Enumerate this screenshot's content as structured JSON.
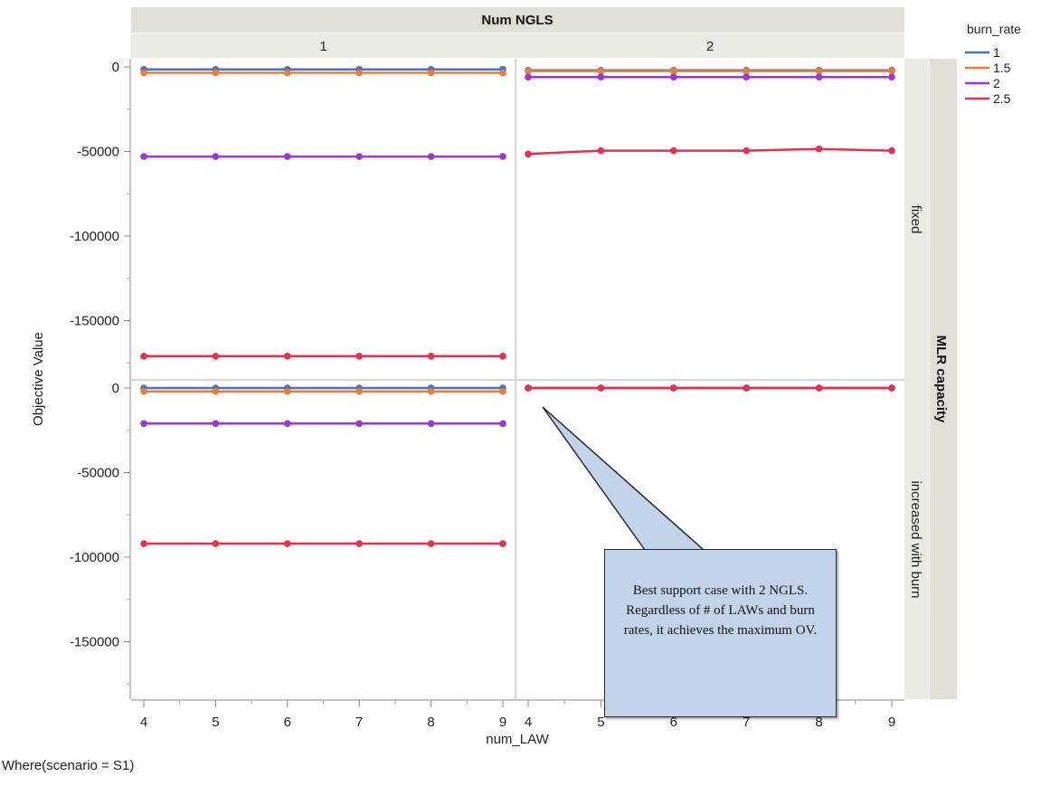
{
  "chart_data": {
    "type": "line",
    "facet_column_title": "Num NGLS",
    "facet_columns": [
      "1",
      "2"
    ],
    "facet_row_title": "MLR capacity",
    "facet_rows": [
      "fixed",
      "increased with burn"
    ],
    "xlabel": "num_LAW",
    "ylabel": "Objective Value",
    "x_ticks": [
      4,
      5,
      6,
      7,
      8,
      9
    ],
    "y_ticks": [
      0,
      -50000,
      -100000,
      -150000
    ],
    "y_tick_labels": [
      "0",
      "-50000",
      "-100000",
      "-150000"
    ],
    "ylim": [
      -180000,
      5000
    ],
    "legend_title": "burn_rate",
    "legend_position": "top-right",
    "colors": {
      "1": "#4472c4",
      "1.5": "#ed7d31",
      "2": "#a033e0",
      "2.5": "#e8304b",
      "marker_other": "#2e9c4a"
    },
    "panels": [
      {
        "row": "fixed",
        "col": "1",
        "series": [
          {
            "name": "1",
            "x": [
              4,
              5,
              6,
              7,
              8,
              9
            ],
            "y": [
              -1500,
              -1500,
              -1500,
              -1500,
              -1500,
              -1500
            ]
          },
          {
            "name": "1.5",
            "x": [
              4,
              5,
              6,
              7,
              8,
              9
            ],
            "y": [
              -3500,
              -3500,
              -3500,
              -3500,
              -3500,
              -3500
            ]
          },
          {
            "name": "2",
            "x": [
              4,
              5,
              6,
              7,
              8,
              9
            ],
            "y": [
              -53000,
              -53000,
              -53000,
              -53000,
              -53000,
              -53000
            ]
          },
          {
            "name": "2.5",
            "x": [
              4,
              5,
              6,
              7,
              8,
              9
            ],
            "y": [
              -171000,
              -171000,
              -171000,
              -171000,
              -171000,
              -171000
            ]
          }
        ]
      },
      {
        "row": "fixed",
        "col": "2",
        "series": [
          {
            "name": "1",
            "x": [
              4,
              5,
              6,
              7,
              8,
              9
            ],
            "y": [
              -2000,
              -2000,
              -2000,
              -2000,
              -2000,
              -2000
            ]
          },
          {
            "name": "1.5",
            "x": [
              4,
              5,
              6,
              7,
              8,
              9
            ],
            "y": [
              -2500,
              -2500,
              -2500,
              -2500,
              -2500,
              -2500
            ]
          },
          {
            "name": "2",
            "x": [
              4,
              5,
              6,
              7,
              8,
              9
            ],
            "y": [
              -6000,
              -6000,
              -6000,
              -6000,
              -6000,
              -6000
            ]
          },
          {
            "name": "2.5",
            "x": [
              4,
              5,
              6,
              7,
              8,
              9
            ],
            "y": [
              -51500,
              -49500,
              -49500,
              -49500,
              -48500,
              -49500
            ]
          }
        ]
      },
      {
        "row": "increased with burn",
        "col": "1",
        "series": [
          {
            "name": "1",
            "x": [
              4,
              5,
              6,
              7,
              8,
              9
            ],
            "y": [
              0,
              0,
              0,
              0,
              0,
              0
            ]
          },
          {
            "name": "1.5",
            "x": [
              4,
              5,
              6,
              7,
              8,
              9
            ],
            "y": [
              -2000,
              -2000,
              -2000,
              -2000,
              -2000,
              -2000
            ]
          },
          {
            "name": "2",
            "x": [
              4,
              5,
              6,
              7,
              8,
              9
            ],
            "y": [
              -21000,
              -21000,
              -21000,
              -21000,
              -21000,
              -21000
            ]
          },
          {
            "name": "2.5",
            "x": [
              4,
              5,
              6,
              7,
              8,
              9
            ],
            "y": [
              -92000,
              -92000,
              -92000,
              -92000,
              -92000,
              -92000
            ]
          }
        ]
      },
      {
        "row": "increased with burn",
        "col": "2",
        "series": [
          {
            "name": "1",
            "x": [
              4,
              5,
              6,
              7,
              8,
              9
            ],
            "y": [
              0,
              0,
              0,
              0,
              0,
              0
            ]
          },
          {
            "name": "1.5",
            "x": [
              4,
              5,
              6,
              7,
              8,
              9
            ],
            "y": [
              0,
              0,
              0,
              0,
              0,
              0
            ]
          },
          {
            "name": "2",
            "x": [
              4,
              5,
              6,
              7,
              8,
              9
            ],
            "y": [
              0,
              0,
              0,
              0,
              0,
              0
            ]
          },
          {
            "name": "2.5",
            "x": [
              4,
              5,
              6,
              7,
              8,
              9
            ],
            "y": [
              0,
              0,
              0,
              0,
              0,
              0
            ]
          }
        ]
      }
    ],
    "annotation": "Best support case with 2 NGLS. Regardless of # of LAWs and burn rates, it achieves the maximum OV."
  },
  "footer": "Where(scenario = S1)"
}
